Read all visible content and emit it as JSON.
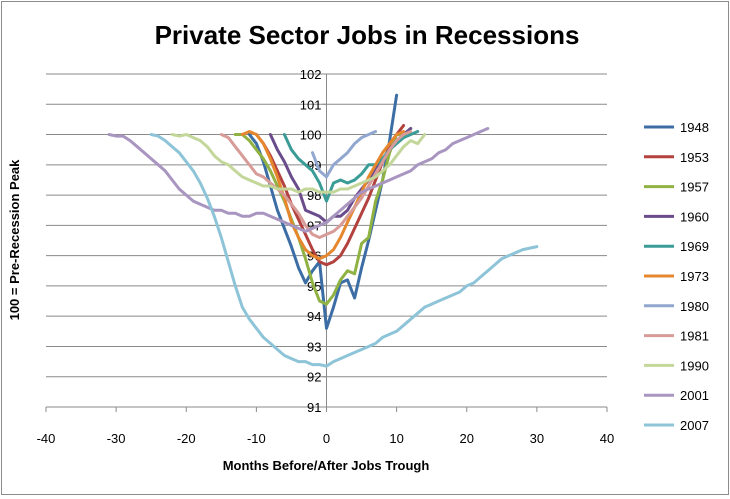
{
  "chart_data": {
    "type": "line",
    "title": "Private Sector Jobs in Recessions",
    "xlabel": "Months Before/After Jobs Trough",
    "ylabel": "100 = Pre-Recession Peak",
    "xlim": [
      -40,
      40
    ],
    "ylim": [
      91,
      102
    ],
    "xticks": [
      -40,
      -30,
      -20,
      -10,
      0,
      10,
      20,
      30,
      40
    ],
    "yticks": [
      91,
      92,
      93,
      94,
      95,
      96,
      97,
      98,
      99,
      100,
      101,
      102
    ],
    "grid": "horizontal",
    "legend": "right",
    "series": [
      {
        "name": "1948",
        "color": "#3c6ea5",
        "x": [
          -11,
          -10,
          -9,
          -8,
          -7,
          -6,
          -5,
          -4,
          -3,
          -2,
          -1,
          0,
          1,
          2,
          3,
          4,
          5,
          6,
          7,
          8,
          9,
          10
        ],
        "y": [
          100,
          99.7,
          99.1,
          98.3,
          97.5,
          96.9,
          96.3,
          95.6,
          95.1,
          95.5,
          95.8,
          93.6,
          94.3,
          95.1,
          95.2,
          94.6,
          95.6,
          96.5,
          97.5,
          98.5,
          99.8,
          101.3
        ]
      },
      {
        "name": "1953",
        "color": "#b3413e",
        "x": [
          -10,
          -9,
          -8,
          -7,
          -6,
          -5,
          -4,
          -3,
          -2,
          -1,
          0,
          1,
          2,
          3,
          4,
          5,
          6,
          7,
          8,
          9,
          10,
          11
        ],
        "y": [
          100,
          99.7,
          99.3,
          98.8,
          98.3,
          97.7,
          97.2,
          96.7,
          96.2,
          95.8,
          95.7,
          95.8,
          96.0,
          96.4,
          96.9,
          97.4,
          97.9,
          98.5,
          99.1,
          99.6,
          100.0,
          100.3
        ]
      },
      {
        "name": "1957",
        "color": "#8fb243",
        "x": [
          -13,
          -12,
          -11,
          -10,
          -9,
          -8,
          -7,
          -6,
          -5,
          -4,
          -3,
          -2,
          -1,
          0,
          1,
          2,
          3,
          4,
          5,
          6,
          7,
          8,
          9,
          10,
          11,
          12
        ],
        "y": [
          100,
          100,
          99.8,
          99.5,
          99.2,
          98.8,
          98.3,
          97.8,
          97.2,
          96.6,
          95.9,
          95.1,
          94.5,
          94.4,
          94.7,
          95.2,
          95.5,
          95.4,
          96.4,
          96.6,
          97.8,
          98.5,
          99.4,
          100.0,
          100.0,
          100.2
        ]
      },
      {
        "name": "1960",
        "color": "#6a4c8c",
        "x": [
          -8,
          -7,
          -6,
          -5,
          -4,
          -3,
          -2,
          -1,
          0,
          1,
          2,
          3,
          4,
          5,
          6,
          7,
          8,
          9,
          10,
          11,
          12
        ],
        "y": [
          100,
          99.5,
          99.1,
          98.6,
          98.2,
          97.5,
          97.4,
          97.3,
          97.1,
          97.3,
          97.3,
          97.5,
          97.9,
          98.2,
          98.5,
          98.9,
          99.2,
          99.5,
          99.8,
          100.0,
          100.2
        ]
      },
      {
        "name": "1969",
        "color": "#3a9c96",
        "x": [
          -6,
          -5,
          -4,
          -3,
          -2,
          -1,
          0,
          1,
          2,
          3,
          4,
          5,
          6,
          7,
          8,
          9,
          10,
          11,
          12,
          13
        ],
        "y": [
          100,
          99.5,
          99.2,
          99.0,
          98.8,
          98.4,
          97.8,
          98.4,
          98.5,
          98.4,
          98.5,
          98.7,
          99.0,
          99.0,
          99.2,
          99.5,
          99.7,
          99.9,
          100.0,
          100.1
        ]
      },
      {
        "name": "1973",
        "color": "#e6872d",
        "x": [
          -12,
          -11,
          -10,
          -9,
          -8,
          -7,
          -6,
          -5,
          -4,
          -3,
          -2,
          -1,
          0,
          1,
          2,
          3,
          4,
          5,
          6,
          7,
          8,
          9,
          10,
          11
        ],
        "y": [
          100,
          100.1,
          100.0,
          99.7,
          99.2,
          98.6,
          97.9,
          97.1,
          96.6,
          96.2,
          96.0,
          95.9,
          96.0,
          96.2,
          96.6,
          97.1,
          97.6,
          98.1,
          98.6,
          99.0,
          99.4,
          99.7,
          100.0,
          100.1
        ]
      },
      {
        "name": "1980",
        "color": "#91a7cf",
        "x": [
          -2,
          -1,
          0,
          1,
          2,
          3,
          4,
          5,
          6,
          7
        ],
        "y": [
          99.4,
          98.8,
          98.6,
          99.0,
          99.2,
          99.4,
          99.7,
          99.9,
          100.0,
          100.1
        ]
      },
      {
        "name": "1981",
        "color": "#d79b98",
        "x": [
          -15,
          -14,
          -13,
          -12,
          -11,
          -10,
          -9,
          -8,
          -7,
          -6,
          -5,
          -4,
          -3,
          -2,
          -1,
          0,
          1,
          2,
          3,
          4,
          5,
          6,
          7,
          8,
          9,
          10,
          11,
          12
        ],
        "y": [
          100,
          99.9,
          99.6,
          99.3,
          99.0,
          98.7,
          98.6,
          98.4,
          98.2,
          98.0,
          97.7,
          97.4,
          97.0,
          96.7,
          96.6,
          96.7,
          96.8,
          97.0,
          97.3,
          97.6,
          97.9,
          98.3,
          98.7,
          99.1,
          99.5,
          99.8,
          100.0,
          100.1
        ]
      },
      {
        "name": "1990",
        "color": "#c4d79b",
        "x": [
          -22,
          -21,
          -20,
          -19,
          -18,
          -17,
          -16,
          -15,
          -14,
          -13,
          -12,
          -11,
          -10,
          -9,
          -8,
          -7,
          -6,
          -5,
          -4,
          -3,
          -2,
          -1,
          0,
          1,
          2,
          3,
          4,
          5,
          6,
          7,
          8,
          9,
          10,
          11,
          12,
          13,
          14
        ],
        "y": [
          100,
          99.95,
          100,
          99.9,
          99.8,
          99.6,
          99.3,
          99.1,
          99.0,
          98.8,
          98.6,
          98.5,
          98.4,
          98.3,
          98.3,
          98.2,
          98.2,
          98.2,
          98.1,
          98.2,
          98.2,
          98.1,
          98.1,
          98.1,
          98.2,
          98.2,
          98.3,
          98.4,
          98.5,
          98.6,
          98.8,
          99.0,
          99.3,
          99.6,
          99.8,
          99.7,
          100.0
        ]
      },
      {
        "name": "2001",
        "color": "#a895c0",
        "x": [
          -31,
          -30,
          -29,
          -28,
          -27,
          -26,
          -25,
          -24,
          -23,
          -22,
          -21,
          -20,
          -19,
          -18,
          -17,
          -16,
          -15,
          -14,
          -13,
          -12,
          -11,
          -10,
          -9,
          -8,
          -7,
          -6,
          -5,
          -4,
          -3,
          -2,
          -1,
          0,
          1,
          2,
          3,
          4,
          5,
          6,
          7,
          8,
          9,
          10,
          11,
          12,
          13,
          14,
          15,
          16,
          17,
          18,
          19,
          20,
          21,
          22,
          23
        ],
        "y": [
          100,
          99.95,
          99.95,
          99.8,
          99.6,
          99.4,
          99.2,
          99.0,
          98.8,
          98.5,
          98.2,
          98.0,
          97.8,
          97.7,
          97.6,
          97.5,
          97.5,
          97.4,
          97.4,
          97.3,
          97.3,
          97.4,
          97.4,
          97.3,
          97.2,
          97.1,
          97.0,
          96.9,
          96.8,
          96.9,
          97.0,
          97.1,
          97.3,
          97.5,
          97.7,
          97.9,
          98.1,
          98.2,
          98.3,
          98.4,
          98.5,
          98.6,
          98.7,
          98.8,
          99.0,
          99.1,
          99.2,
          99.4,
          99.5,
          99.7,
          99.8,
          99.9,
          100.0,
          100.1,
          100.2
        ]
      },
      {
        "name": "2007",
        "color": "#8dc4d8",
        "x": [
          -25,
          -24,
          -23,
          -22,
          -21,
          -20,
          -19,
          -18,
          -17,
          -16,
          -15,
          -14,
          -13,
          -12,
          -11,
          -10,
          -9,
          -8,
          -7,
          -6,
          -5,
          -4,
          -3,
          -2,
          -1,
          0,
          1,
          2,
          3,
          4,
          5,
          6,
          7,
          8,
          9,
          10,
          11,
          12,
          13,
          14,
          15,
          16,
          17,
          18,
          19,
          20,
          21,
          22,
          23,
          24,
          25,
          26,
          27,
          28,
          29,
          30
        ],
        "y": [
          100,
          99.95,
          99.8,
          99.6,
          99.4,
          99.1,
          98.8,
          98.4,
          97.9,
          97.3,
          96.6,
          95.8,
          95.0,
          94.3,
          93.9,
          93.6,
          93.3,
          93.1,
          92.9,
          92.7,
          92.6,
          92.5,
          92.5,
          92.4,
          92.4,
          92.35,
          92.5,
          92.6,
          92.7,
          92.8,
          92.9,
          93.0,
          93.1,
          93.3,
          93.4,
          93.5,
          93.7,
          93.9,
          94.1,
          94.3,
          94.4,
          94.5,
          94.6,
          94.7,
          94.8,
          95.0,
          95.1,
          95.3,
          95.5,
          95.7,
          95.9,
          96.0,
          96.1,
          96.2,
          96.25,
          96.3
        ]
      }
    ]
  }
}
